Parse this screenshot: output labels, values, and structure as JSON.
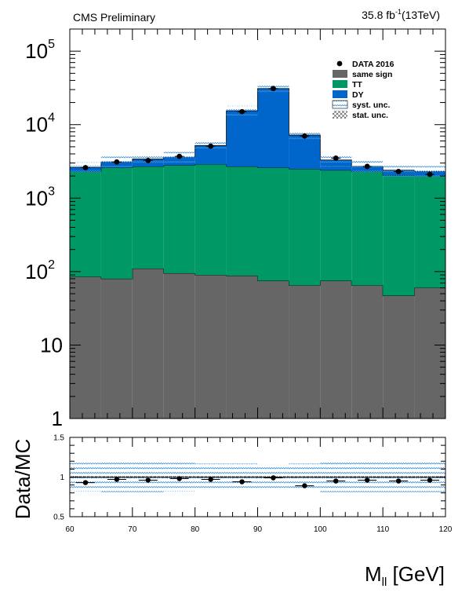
{
  "header": {
    "left": "CMS Preliminary",
    "lumi_value": "35.8 fb",
    "lumi_exp": "-1",
    "lumi_energy": "(13TeV)"
  },
  "chart_data": [
    {
      "type": "bar",
      "stacked": true,
      "log_y": true,
      "x_edges": [
        60,
        65,
        70,
        75,
        80,
        85,
        90,
        95,
        100,
        105,
        110,
        115,
        120
      ],
      "xlim": [
        60,
        120
      ],
      "ylim": [
        1,
        200000
      ],
      "xlabel": "",
      "ylabel": "",
      "y_ticks": [
        {
          "value": 1,
          "label": "1"
        },
        {
          "value": 10,
          "label": "10"
        },
        {
          "value": 100,
          "label": "10",
          "exp": "2"
        },
        {
          "value": 1000,
          "label": "10",
          "exp": "3"
        },
        {
          "value": 10000,
          "label": "10",
          "exp": "4"
        },
        {
          "value": 100000,
          "label": "10",
          "exp": "5"
        }
      ],
      "series": [
        {
          "name": "same sign",
          "color": "#666666",
          "values": [
            85,
            80,
            110,
            95,
            90,
            88,
            75,
            65,
            75,
            65,
            47,
            60
          ]
        },
        {
          "name": "TT",
          "color": "#009966",
          "values": [
            2215,
            2520,
            2590,
            2705,
            2810,
            2612,
            2525,
            2435,
            2325,
            2235,
            2003,
            1940
          ]
        },
        {
          "name": "DY",
          "color": "#0066cc",
          "values": [
            300,
            500,
            700,
            800,
            2300,
            12700,
            28400,
            4700,
            900,
            400,
            350,
            300
          ]
        }
      ],
      "data": {
        "name": "DATA 2016",
        "x": [
          62.5,
          67.5,
          72.5,
          77.5,
          82.5,
          87.5,
          92.5,
          97.5,
          102.5,
          107.5,
          112.5,
          117.5
        ],
        "values": [
          2600,
          3100,
          3250,
          3700,
          5100,
          15000,
          31000,
          7000,
          3500,
          2700,
          2300,
          2100
        ]
      },
      "legend": {
        "placement": "top-right",
        "entries": [
          {
            "label": "DATA 2016",
            "style": "marker"
          },
          {
            "label": "same sign",
            "style": "fill",
            "color": "#666666"
          },
          {
            "label": "TT",
            "style": "fill",
            "color": "#009966"
          },
          {
            "label": "DY",
            "style": "fill",
            "color": "#0066cc"
          },
          {
            "label": "syst. unc.",
            "style": "hatch-blue"
          },
          {
            "label": "stat. unc.",
            "style": "hatch-cross"
          }
        ]
      }
    },
    {
      "type": "scatter",
      "ylabel": "Data/MC",
      "xlabel": "M",
      "xlabel_sub": "ll",
      "xlabel_unit": " [GeV]",
      "xlim": [
        60,
        120
      ],
      "ylim": [
        0.5,
        1.5
      ],
      "x_ticks": [
        60,
        70,
        80,
        90,
        100,
        110,
        120
      ],
      "y_ticks": [
        {
          "value": 0.5,
          "label": "0.5"
        },
        {
          "value": 1,
          "label": "1"
        },
        {
          "value": 1.5,
          "label": "1.5"
        }
      ],
      "x": [
        62.5,
        67.5,
        72.5,
        77.5,
        82.5,
        87.5,
        92.5,
        97.5,
        102.5,
        107.5,
        112.5,
        117.5
      ],
      "values": [
        0.93,
        0.97,
        0.96,
        0.98,
        0.97,
        0.94,
        0.99,
        0.89,
        0.95,
        0.96,
        0.95,
        0.96
      ],
      "syst_unc": [
        0.18,
        0.19,
        0.19,
        0.18,
        0.17,
        0.17,
        0.16,
        0.17,
        0.19,
        0.19,
        0.19,
        0.19
      ]
    }
  ]
}
